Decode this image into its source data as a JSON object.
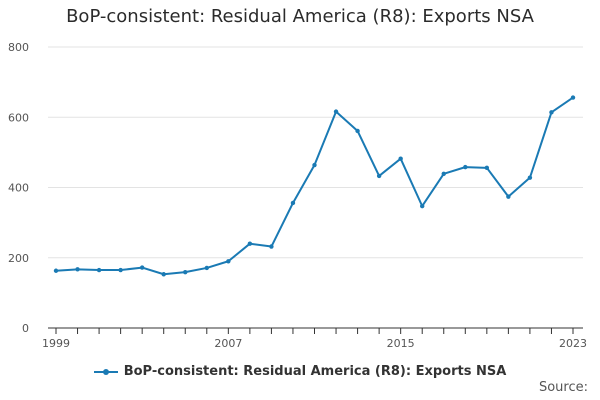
{
  "chart_data": {
    "type": "line",
    "title": "BoP-consistent: Residual America (R8): Exports NSA",
    "xlabel": "",
    "ylabel": "",
    "x": [
      1999,
      2000,
      2001,
      2002,
      2003,
      2004,
      2005,
      2006,
      2007,
      2008,
      2009,
      2010,
      2011,
      2012,
      2013,
      2014,
      2015,
      2016,
      2017,
      2018,
      2019,
      2020,
      2021,
      2022,
      2023
    ],
    "series": [
      {
        "name": "BoP-consistent: Residual America (R8): Exports NSA",
        "color": "#1a7ab4",
        "values": [
          163,
          167,
          165,
          165,
          172,
          153,
          159,
          171,
          190,
          240,
          232,
          356,
          464,
          616,
          561,
          433,
          482,
          347,
          439,
          458,
          456,
          374,
          428,
          614,
          656
        ]
      }
    ],
    "xlim": [
      1999,
      2023
    ],
    "ylim": [
      0,
      800
    ],
    "y_ticks": [
      0,
      200,
      400,
      600,
      800
    ],
    "x_tick_labels": [
      1999,
      2007,
      2015,
      2023
    ],
    "grid": "horizontal",
    "legend_placement": "bottom"
  },
  "source_label": "Source:"
}
